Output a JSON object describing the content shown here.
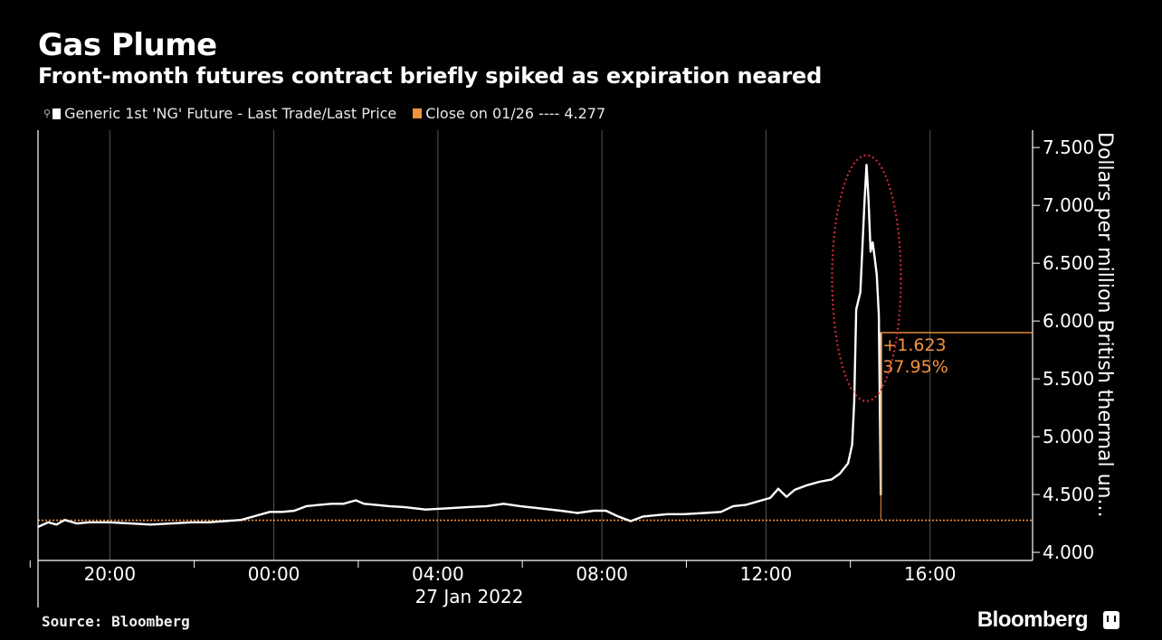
{
  "title": "Gas Plume",
  "subtitle": "Front-month futures contract briefly spiked as expiration neared",
  "legend": {
    "series_label": "Generic 1st 'NG' Future - Last Trade/Last Price",
    "close_label": "Close on 01/26 ---- 4.277"
  },
  "source": "Source: Bloomberg",
  "brand": "Bloomberg",
  "colors": {
    "series": "#ffffff",
    "close": "#f5923e",
    "annotation": "#f5923e",
    "highlight": "#cc2936",
    "grid": "#555555"
  },
  "chart_data": {
    "type": "line",
    "title": "Gas Plume",
    "subtitle": "Front-month futures contract briefly spiked as expiration neared",
    "ylabel": "Dollars per million British thermal un...",
    "xlabel": "27 Jan 2022",
    "ylim": [
      3.93,
      7.65
    ],
    "xlim": [
      -5.75,
      18.5
    ],
    "x_unit": "hours relative to 00:00 27 Jan 2022",
    "x_ticks": [
      {
        "x": -4,
        "label": "20:00"
      },
      {
        "x": 0,
        "label": "00:00"
      },
      {
        "x": 4,
        "label": "04:00"
      },
      {
        "x": 8,
        "label": "08:00"
      },
      {
        "x": 12,
        "label": "12:00"
      },
      {
        "x": 16,
        "label": "16:00"
      }
    ],
    "y_ticks": [
      {
        "y": 4.0,
        "label": "4.000"
      },
      {
        "y": 4.5,
        "label": "4.500"
      },
      {
        "y": 5.0,
        "label": "5.000"
      },
      {
        "y": 5.5,
        "label": "5.500"
      },
      {
        "y": 6.0,
        "label": "6.000"
      },
      {
        "y": 6.5,
        "label": "6.500"
      },
      {
        "y": 7.0,
        "label": "7.000"
      },
      {
        "y": 7.5,
        "label": "7.500"
      }
    ],
    "grid": true,
    "legend_position": "top-left",
    "reference_line": {
      "name": "Close on 01/26",
      "value": 4.277
    },
    "annotation": {
      "change": "+1.623",
      "percent": "37.95%",
      "level": 5.9
    },
    "series": [
      {
        "name": "Generic 1st 'NG' Future - Last Trade/Last Price",
        "points": [
          [
            -5.75,
            4.22
          ],
          [
            -5.5,
            4.26
          ],
          [
            -5.3,
            4.24
          ],
          [
            -5.1,
            4.28
          ],
          [
            -4.8,
            4.25
          ],
          [
            -4.5,
            4.26
          ],
          [
            -4.0,
            4.26
          ],
          [
            -3.5,
            4.25
          ],
          [
            -3.0,
            4.24
          ],
          [
            -2.5,
            4.25
          ],
          [
            -2.0,
            4.26
          ],
          [
            -1.6,
            4.26
          ],
          [
            -1.2,
            4.27
          ],
          [
            -0.8,
            4.28
          ],
          [
            -0.4,
            4.32
          ],
          [
            -0.1,
            4.35
          ],
          [
            0.2,
            4.35
          ],
          [
            0.5,
            4.36
          ],
          [
            0.8,
            4.4
          ],
          [
            1.1,
            4.41
          ],
          [
            1.4,
            4.42
          ],
          [
            1.7,
            4.42
          ],
          [
            2.0,
            4.45
          ],
          [
            2.2,
            4.42
          ],
          [
            2.5,
            4.41
          ],
          [
            2.8,
            4.4
          ],
          [
            3.2,
            4.39
          ],
          [
            3.7,
            4.37
          ],
          [
            4.2,
            4.38
          ],
          [
            4.7,
            4.39
          ],
          [
            5.2,
            4.4
          ],
          [
            5.6,
            4.42
          ],
          [
            6.0,
            4.4
          ],
          [
            6.5,
            4.38
          ],
          [
            7.0,
            4.36
          ],
          [
            7.4,
            4.34
          ],
          [
            7.8,
            4.36
          ],
          [
            8.1,
            4.36
          ],
          [
            8.4,
            4.31
          ],
          [
            8.7,
            4.27
          ],
          [
            9.0,
            4.31
          ],
          [
            9.3,
            4.32
          ],
          [
            9.6,
            4.33
          ],
          [
            10.0,
            4.33
          ],
          [
            10.5,
            4.34
          ],
          [
            10.9,
            4.35
          ],
          [
            11.2,
            4.4
          ],
          [
            11.5,
            4.41
          ],
          [
            11.8,
            4.44
          ],
          [
            12.1,
            4.47
          ],
          [
            12.3,
            4.55
          ],
          [
            12.5,
            4.48
          ],
          [
            12.7,
            4.54
          ],
          [
            13.0,
            4.58
          ],
          [
            13.3,
            4.61
          ],
          [
            13.6,
            4.63
          ],
          [
            13.8,
            4.68
          ],
          [
            14.0,
            4.77
          ],
          [
            14.1,
            4.93
          ],
          [
            14.15,
            5.3
          ],
          [
            14.2,
            6.1
          ],
          [
            14.3,
            6.25
          ],
          [
            14.4,
            7.02
          ],
          [
            14.45,
            7.35
          ],
          [
            14.5,
            7.05
          ],
          [
            14.55,
            6.6
          ],
          [
            14.6,
            6.68
          ],
          [
            14.65,
            6.55
          ],
          [
            14.7,
            6.4
          ],
          [
            14.75,
            6.05
          ],
          [
            14.8,
            4.5
          ],
          [
            14.8,
            5.9
          ]
        ]
      }
    ]
  }
}
